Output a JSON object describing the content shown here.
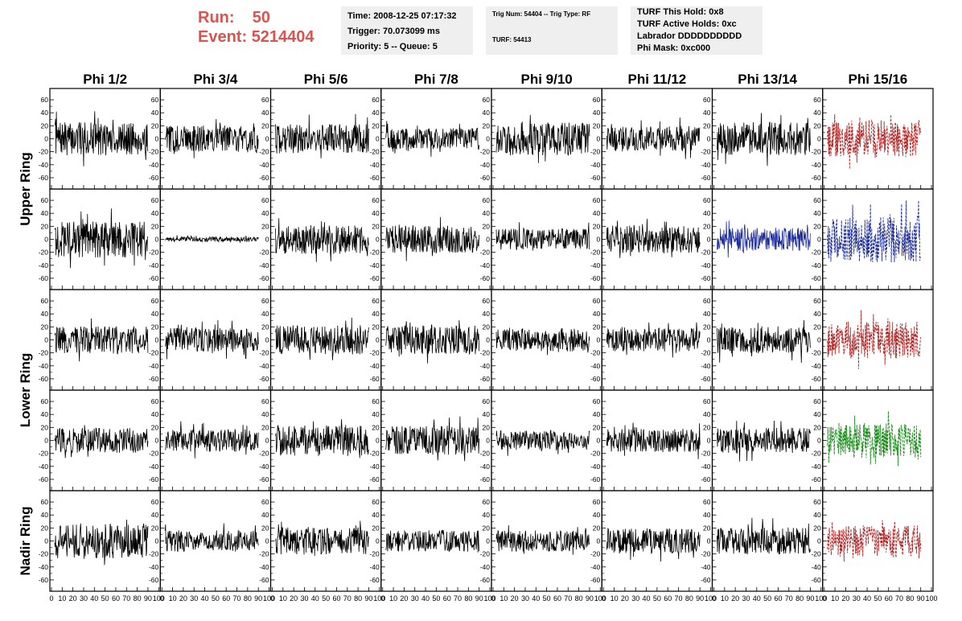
{
  "header": {
    "run_label": "Run:",
    "run_value": "50",
    "event_label": "Event:",
    "event_value": "5214404",
    "time": "Time: 2008-12-25 07:17:32",
    "trigger": "Trigger: 70.073099 ms",
    "priority": "Priority: 5 -- Queue: 5",
    "trig_num": "Trig Num: 54404 -- Trig Type: RF",
    "turf": "TURF: 54413",
    "turf_this_hold": "TURF This Hold: 0x8",
    "turf_active_holds": "TURF Active Holds: 0xc",
    "labrador": "Labrador DDDDDDDDDD",
    "phi_mask": "Phi Mask: 0xc000"
  },
  "chart_data": {
    "type": "line",
    "columns": [
      "Phi 1/2",
      "Phi 3/4",
      "Phi 5/6",
      "Phi 7/8",
      "Phi 9/10",
      "Phi 11/12",
      "Phi 13/14",
      "Phi 15/16"
    ],
    "row_groups": [
      {
        "label": "Upper Ring",
        "rows": [
          0,
          1
        ]
      },
      {
        "label": "Lower Ring",
        "rows": [
          2,
          3
        ]
      },
      {
        "label": "Nadir Ring",
        "rows": [
          4
        ]
      }
    ],
    "xlim": [
      0,
      100
    ],
    "x_tick_labels": [
      "0",
      "10",
      "20",
      "30",
      "40",
      "50",
      "60",
      "70",
      "80",
      "90",
      "100"
    ],
    "ylim": [
      -70,
      70
    ],
    "y_tick_labels": [
      "-60",
      "-40",
      "-20",
      "0",
      "20",
      "40",
      "60"
    ],
    "trace_colors": {
      "normal": "#000000",
      "red": "#b22222",
      "blue": "#1f2f9a",
      "green": "#1a8a1a"
    },
    "panels": [
      [
        {
          "amp": 34,
          "style": "solid",
          "color": "normal"
        },
        {
          "amp": 28,
          "style": "solid",
          "color": "normal"
        },
        {
          "amp": 30,
          "style": "solid",
          "color": "normal"
        },
        {
          "amp": 22,
          "style": "solid",
          "color": "normal"
        },
        {
          "amp": 34,
          "style": "solid",
          "color": "normal"
        },
        {
          "amp": 26,
          "style": "solid",
          "color": "normal"
        },
        {
          "amp": 34,
          "style": "solid",
          "color": "normal"
        },
        {
          "amp": 38,
          "style": "dashed",
          "color": "red"
        }
      ],
      [
        {
          "amp": 38,
          "style": "solid",
          "color": "normal"
        },
        {
          "amp": 5,
          "style": "solid",
          "color": "normal"
        },
        {
          "amp": 30,
          "style": "solid",
          "color": "normal"
        },
        {
          "amp": 28,
          "style": "solid",
          "color": "normal"
        },
        {
          "amp": 22,
          "style": "solid",
          "color": "normal"
        },
        {
          "amp": 28,
          "style": "solid",
          "color": "normal"
        },
        {
          "amp": 24,
          "style": "solid",
          "color": "blue"
        },
        {
          "amp": 48,
          "style": "dashed",
          "color": "blue"
        }
      ],
      [
        {
          "amp": 28,
          "style": "solid",
          "color": "normal"
        },
        {
          "amp": 24,
          "style": "solid",
          "color": "normal"
        },
        {
          "amp": 30,
          "style": "solid",
          "color": "normal"
        },
        {
          "amp": 30,
          "style": "solid",
          "color": "normal"
        },
        {
          "amp": 24,
          "style": "solid",
          "color": "normal"
        },
        {
          "amp": 24,
          "style": "solid",
          "color": "normal"
        },
        {
          "amp": 28,
          "style": "solid",
          "color": "normal"
        },
        {
          "amp": 38,
          "style": "dashed",
          "color": "red"
        }
      ],
      [
        {
          "amp": 26,
          "style": "solid",
          "color": "normal"
        },
        {
          "amp": 24,
          "style": "solid",
          "color": "normal"
        },
        {
          "amp": 32,
          "style": "solid",
          "color": "normal"
        },
        {
          "amp": 30,
          "style": "solid",
          "color": "normal"
        },
        {
          "amp": 20,
          "style": "solid",
          "color": "normal"
        },
        {
          "amp": 24,
          "style": "solid",
          "color": "normal"
        },
        {
          "amp": 26,
          "style": "solid",
          "color": "normal"
        },
        {
          "amp": 36,
          "style": "dashed",
          "color": "green"
        }
      ],
      [
        {
          "amp": 36,
          "style": "solid",
          "color": "normal"
        },
        {
          "amp": 22,
          "style": "solid",
          "color": "normal"
        },
        {
          "amp": 28,
          "style": "solid",
          "color": "normal"
        },
        {
          "amp": 22,
          "style": "solid",
          "color": "normal"
        },
        {
          "amp": 22,
          "style": "solid",
          "color": "normal"
        },
        {
          "amp": 26,
          "style": "solid",
          "color": "normal"
        },
        {
          "amp": 28,
          "style": "solid",
          "color": "normal"
        },
        {
          "amp": 32,
          "style": "dashed",
          "color": "red"
        }
      ]
    ]
  }
}
